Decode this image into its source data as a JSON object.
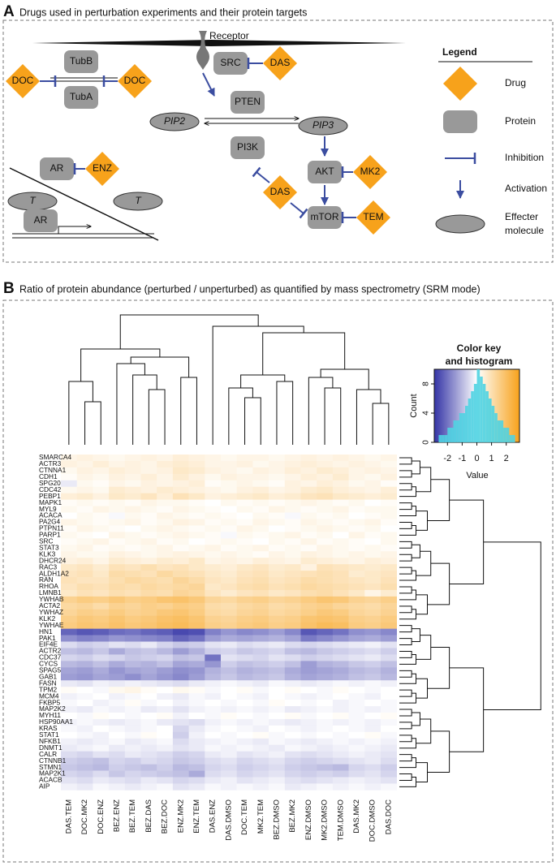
{
  "panel_a": {
    "label": "A",
    "title": "Drugs used in perturbation experiments and their protein targets",
    "receptor": "Receptor",
    "drugs": [
      "DOC",
      "DOC",
      "DAS",
      "ENZ",
      "DAS",
      "MK2",
      "TEM"
    ],
    "proteins": [
      "TubB",
      "TubA",
      "SRC",
      "PTEN",
      "PI3K",
      "AR",
      "AKT",
      "mTOR",
      "AR"
    ],
    "molecules": [
      "PIP2",
      "PIP3",
      "T",
      "T"
    ],
    "legend": {
      "title": "Legend",
      "drug": "Drug",
      "protein": "Protein",
      "inhibition": "Inhibition",
      "activation": "Activation",
      "effecter": [
        "Effecter",
        "molecule"
      ]
    }
  },
  "chart_data": {
    "type": "heatmap",
    "panel_label": "B",
    "title": "Ratio of protein abundance (perturbed / unperturbed) as quantified by mass spectrometry (SRM mode)",
    "rows": [
      "SMARCA4",
      "ACTR3",
      "CTNNA1",
      "CDH1",
      "SPG20",
      "CDC42",
      "PEBP1",
      "MAPK1",
      "MYL9",
      "ACACA",
      "PA2G4",
      "PTPN11",
      "PARP1",
      "SRC",
      "STAT3",
      "KLK3",
      "DHCR24",
      "RAC3",
      "ALDH1A2",
      "RAN",
      "RHOA",
      "LMNB1",
      "YWHAB",
      "ACTA2",
      "YWHAZ",
      "KLK2",
      "YWHAE",
      "HN1",
      "PAK1",
      "EIF4E",
      "ACTR2",
      "CDC37",
      "CYCS",
      "SPAG5",
      "GAB1",
      "FASN",
      "TPM2",
      "MCM4",
      "FKBP5",
      "MAP2K2",
      "MYH11",
      "HSP90AA1",
      "KRAS",
      "STAT1",
      "NFKB1",
      "DNMT1",
      "CALR",
      "CTNNB1",
      "STMN1",
      "MAP2K1",
      "ACACB",
      "AIP"
    ],
    "columns": [
      "DAS.TEM",
      "DOC.MK2",
      "DOC.ENZ",
      "BEZ.ENZ",
      "BEZ.TEM",
      "BEZ.DAS",
      "BEZ.DOC",
      "ENZ.MK2",
      "ENZ.TEM",
      "DAS.ENZ",
      "DAS.DMSO",
      "DOC.TEM",
      "MK2.TEM",
      "BEZ.DMSO",
      "BEZ.MK2",
      "ENZ.DMSO",
      "MK2.DMSO",
      "TEM.DMSO",
      "DAS.MK2",
      "DOC.DMSO",
      "DAS.DOC"
    ],
    "values": [
      [
        0.3,
        0.4,
        0.3,
        0.2,
        0.3,
        0.4,
        0.3,
        0.5,
        0.4,
        0.3,
        0.2,
        0.3,
        0.3,
        0.2,
        0.3,
        0.4,
        0.3,
        0.4,
        0.3,
        0.2,
        0.3
      ],
      [
        0.4,
        0.3,
        0.5,
        0.3,
        0.4,
        0.3,
        0.5,
        0.6,
        0.5,
        0.3,
        0.3,
        0.4,
        0.2,
        0.3,
        0.4,
        0.5,
        0.4,
        0.3,
        0.4,
        0.3,
        0.2
      ],
      [
        0.2,
        0.4,
        0.3,
        0.5,
        0.4,
        0.3,
        0.4,
        0.7,
        0.6,
        0.4,
        0.3,
        0.2,
        0.4,
        0.3,
        0.5,
        0.4,
        0.6,
        0.5,
        0.3,
        0.4,
        0.3
      ],
      [
        0.1,
        0.3,
        0.2,
        0.4,
        0.3,
        0.5,
        0.3,
        0.6,
        0.4,
        0.2,
        0.4,
        0.3,
        0.3,
        0.2,
        0.3,
        0.5,
        0.4,
        0.6,
        0.3,
        0.2,
        0.4
      ],
      [
        -0.3,
        0.2,
        0.1,
        0.3,
        0.2,
        0.4,
        0.3,
        0.4,
        0.5,
        0.1,
        0.2,
        0.3,
        0.2,
        0.1,
        0.4,
        0.3,
        0.5,
        0.4,
        0.2,
        0.3,
        0.1
      ],
      [
        0.2,
        0.3,
        0.2,
        0.6,
        0.5,
        0.4,
        0.6,
        0.5,
        0.4,
        0.3,
        0.2,
        0.4,
        0.5,
        0.3,
        0.4,
        0.6,
        0.7,
        0.5,
        0.4,
        0.3,
        0.5
      ],
      [
        0.5,
        0.6,
        0.4,
        0.7,
        0.6,
        0.8,
        0.5,
        0.9,
        0.7,
        0.4,
        0.5,
        0.6,
        0.7,
        0.5,
        0.6,
        0.8,
        0.9,
        0.7,
        0.6,
        0.5,
        0.6
      ],
      [
        0.1,
        0.2,
        0.1,
        0.2,
        0.1,
        0.3,
        0.2,
        0.2,
        0.1,
        0.0,
        0.2,
        0.1,
        0.2,
        0.1,
        0.2,
        0.3,
        0.2,
        0.1,
        0.2,
        0.0,
        0.1
      ],
      [
        0.2,
        0.1,
        0.3,
        0.2,
        0.3,
        0.2,
        0.1,
        0.3,
        0.2,
        0.1,
        0.0,
        0.2,
        0.1,
        0.3,
        0.2,
        0.1,
        0.2,
        0.3,
        0.1,
        0.2,
        0.2
      ],
      [
        0.0,
        0.2,
        0.1,
        -0.1,
        0.2,
        0.1,
        0.3,
        0.2,
        0.1,
        0.2,
        0.1,
        0.0,
        0.2,
        0.1,
        -0.1,
        0.2,
        0.1,
        0.2,
        0.0,
        0.1,
        0.2
      ],
      [
        0.3,
        0.2,
        0.1,
        0.2,
        0.3,
        0.1,
        0.2,
        0.4,
        0.3,
        0.1,
        0.2,
        0.1,
        0.3,
        0.2,
        0.1,
        0.3,
        0.2,
        0.1,
        0.2,
        0.3,
        0.1
      ],
      [
        0.1,
        0.3,
        0.2,
        0.1,
        0.0,
        0.2,
        0.3,
        0.2,
        0.1,
        0.2,
        0.1,
        0.3,
        0.2,
        0.0,
        0.1,
        0.2,
        0.3,
        0.2,
        0.1,
        0.2,
        0.0
      ],
      [
        0.2,
        0.1,
        0.0,
        0.3,
        0.2,
        0.1,
        0.2,
        0.3,
        0.2,
        0.1,
        -0.1,
        0.2,
        0.1,
        0.2,
        0.3,
        0.1,
        0.2,
        0.0,
        0.3,
        0.1,
        0.2
      ],
      [
        0.1,
        0.2,
        0.3,
        0.1,
        0.2,
        0.3,
        0.1,
        0.2,
        0.0,
        0.1,
        0.2,
        0.1,
        0.0,
        0.2,
        0.1,
        0.3,
        0.1,
        0.2,
        0.1,
        0.0,
        0.2
      ],
      [
        0.2,
        0.3,
        0.1,
        0.2,
        0.1,
        0.2,
        0.3,
        0.1,
        0.2,
        0.3,
        0.1,
        0.2,
        0.3,
        0.1,
        0.2,
        0.1,
        0.3,
        0.2,
        0.1,
        0.2,
        0.1
      ],
      [
        0.3,
        0.2,
        0.2,
        0.4,
        0.3,
        0.2,
        0.3,
        0.4,
        0.3,
        0.2,
        0.3,
        0.2,
        0.1,
        0.3,
        0.2,
        0.4,
        0.3,
        0.2,
        0.3,
        0.2,
        0.3
      ],
      [
        0.4,
        0.5,
        0.3,
        0.6,
        0.5,
        0.4,
        0.6,
        0.5,
        0.7,
        0.3,
        0.4,
        0.3,
        0.5,
        0.4,
        0.3,
        0.6,
        0.5,
        0.4,
        0.3,
        0.5,
        0.4
      ],
      [
        0.7,
        0.8,
        0.6,
        0.9,
        0.8,
        1.0,
        0.8,
        0.9,
        0.7,
        0.6,
        0.5,
        0.7,
        0.8,
        0.6,
        0.7,
        0.4,
        0.9,
        0.8,
        0.7,
        0.6,
        0.7
      ],
      [
        0.8,
        0.9,
        0.7,
        1.1,
        1.0,
        0.9,
        1.2,
        1.0,
        0.9,
        0.7,
        0.6,
        0.8,
        0.9,
        0.7,
        0.8,
        0.9,
        1.0,
        0.9,
        0.6,
        0.7,
        0.8
      ],
      [
        0.9,
        0.8,
        0.8,
        1.0,
        1.2,
        1.1,
        1.0,
        1.3,
        1.1,
        0.8,
        0.7,
        0.9,
        1.0,
        0.8,
        0.9,
        1.1,
        1.0,
        0.9,
        0.8,
        0.7,
        0.9
      ],
      [
        0.8,
        1.0,
        0.9,
        1.1,
        1.0,
        1.2,
        1.1,
        1.2,
        1.3,
        0.7,
        0.8,
        1.0,
        1.1,
        0.9,
        1.0,
        1.2,
        1.1,
        1.0,
        0.9,
        0.8,
        1.0
      ],
      [
        0.7,
        0.9,
        0.8,
        1.0,
        0.9,
        1.1,
        1.0,
        1.3,
        1.2,
        0.8,
        0.6,
        0.8,
        0.9,
        0.7,
        0.8,
        1.0,
        1.1,
        0.9,
        0.7,
        0.3,
        0.6
      ],
      [
        1.4,
        1.6,
        1.5,
        1.7,
        1.5,
        1.6,
        1.8,
        1.9,
        1.7,
        1.3,
        1.2,
        1.4,
        1.5,
        1.3,
        1.4,
        1.6,
        1.8,
        1.7,
        1.4,
        1.3,
        1.5
      ],
      [
        1.2,
        1.3,
        1.1,
        1.4,
        1.3,
        1.5,
        1.4,
        1.6,
        1.5,
        1.1,
        1.0,
        1.2,
        1.3,
        1.1,
        1.2,
        1.4,
        1.5,
        1.3,
        1.2,
        1.1,
        1.3
      ],
      [
        1.3,
        1.5,
        1.4,
        1.6,
        1.4,
        1.5,
        1.7,
        1.8,
        1.6,
        1.2,
        1.1,
        1.3,
        1.4,
        1.2,
        1.3,
        1.5,
        1.7,
        1.6,
        1.3,
        1.2,
        1.4
      ],
      [
        1.5,
        1.7,
        1.6,
        1.8,
        1.6,
        1.7,
        1.9,
        2.0,
        1.8,
        1.4,
        1.3,
        1.5,
        1.6,
        1.4,
        1.5,
        1.8,
        1.9,
        1.8,
        1.5,
        1.4,
        1.6
      ],
      [
        1.6,
        1.8,
        1.7,
        1.9,
        1.7,
        1.8,
        2.0,
        2.1,
        1.9,
        1.5,
        1.4,
        1.6,
        1.7,
        1.5,
        1.6,
        1.9,
        2.1,
        2.0,
        1.6,
        1.5,
        1.7
      ],
      [
        -2.2,
        -2.4,
        -2.3,
        -2.1,
        -2.0,
        -2.2,
        -2.3,
        -2.6,
        -2.5,
        -1.8,
        -1.5,
        -1.7,
        -1.6,
        -1.4,
        -1.7,
        -2.4,
        -2.2,
        -2.0,
        -1.6,
        -1.5,
        -1.7
      ],
      [
        -1.6,
        -1.8,
        -1.7,
        -1.5,
        -1.6,
        -1.7,
        -1.8,
        -2.2,
        -2.0,
        -1.4,
        -1.2,
        -1.3,
        -1.2,
        -1.1,
        -1.3,
        -1.9,
        -1.7,
        -1.5,
        -1.3,
        -1.2,
        -1.4
      ],
      [
        -0.5,
        -0.7,
        -0.6,
        -0.4,
        -0.5,
        -0.3,
        -0.6,
        -0.8,
        -0.7,
        -0.4,
        -0.3,
        -0.5,
        -0.4,
        -0.3,
        -0.5,
        -0.6,
        -0.5,
        -0.4,
        -0.3,
        -0.2,
        -0.4
      ],
      [
        -0.9,
        -1.0,
        -0.8,
        -1.2,
        -0.9,
        -0.8,
        -1.0,
        -1.4,
        -1.1,
        -0.7,
        -0.6,
        -0.8,
        -0.7,
        -0.6,
        -0.9,
        -1.0,
        -0.8,
        -0.7,
        -0.6,
        -0.5,
        -0.7
      ],
      [
        -0.6,
        -0.7,
        -0.5,
        -0.6,
        -0.8,
        -0.7,
        -0.6,
        -0.9,
        -0.8,
        -2.0,
        -0.4,
        -0.5,
        -0.6,
        -0.4,
        -0.5,
        -0.7,
        -0.6,
        -0.5,
        -0.4,
        -0.3,
        -0.5
      ],
      [
        -1.0,
        -1.1,
        -0.9,
        -1.2,
        -1.0,
        -1.1,
        -0.9,
        -1.3,
        -1.2,
        -1.5,
        -0.7,
        -0.9,
        -0.8,
        -0.7,
        -0.9,
        -1.4,
        -1.1,
        -1.0,
        -0.8,
        -0.7,
        -0.9
      ],
      [
        -1.3,
        -1.4,
        -1.2,
        -1.5,
        -1.3,
        -1.2,
        -1.4,
        -1.6,
        -1.5,
        -1.1,
        -0.9,
        -1.1,
        -1.0,
        -0.9,
        -1.2,
        -1.4,
        -1.3,
        -1.2,
        -1.0,
        -0.9,
        -1.1
      ],
      [
        -1.4,
        -1.5,
        -1.3,
        -1.4,
        -1.6,
        -1.3,
        -1.5,
        -1.7,
        -1.4,
        -1.0,
        -0.8,
        -1.0,
        -0.9,
        -0.8,
        -1.1,
        -1.3,
        -1.2,
        -1.1,
        -0.9,
        -0.8,
        -1.0
      ],
      [
        -0.3,
        -0.4,
        -0.2,
        -0.3,
        -0.2,
        -0.3,
        -0.4,
        -0.5,
        -0.3,
        -0.2,
        -0.1,
        -0.2,
        -0.3,
        -0.1,
        -0.2,
        -0.3,
        -0.2,
        -0.1,
        -0.2,
        -0.1,
        -0.2
      ],
      [
        0.1,
        0.0,
        -0.1,
        0.2,
        0.3,
        0.1,
        0.0,
        0.2,
        0.1,
        -0.1,
        0.0,
        0.1,
        -0.1,
        0.0,
        0.1,
        0.0,
        -0.1,
        0.1,
        0.0,
        -0.1,
        0.0
      ],
      [
        -0.2,
        -0.1,
        0.0,
        -0.2,
        -0.1,
        0.0,
        -0.2,
        -0.3,
        -0.1,
        -0.2,
        0.0,
        -0.1,
        -0.2,
        0.0,
        -0.1,
        -0.2,
        -0.1,
        0.0,
        -0.1,
        -0.2,
        0.0
      ],
      [
        -0.1,
        0.0,
        -0.2,
        -0.1,
        0.1,
        -0.1,
        0.0,
        -0.2,
        -0.1,
        0.0,
        -0.1,
        0.0,
        -0.1,
        0.1,
        0.0,
        -0.1,
        0.0,
        -0.2,
        -0.1,
        0.0,
        -0.1
      ],
      [
        -0.2,
        -0.3,
        -0.1,
        -0.2,
        -0.1,
        -0.3,
        -0.2,
        -0.4,
        -0.2,
        -0.1,
        -0.2,
        -0.1,
        -0.2,
        -0.1,
        -0.3,
        -0.2,
        -0.1,
        -0.2,
        -0.1,
        -0.2,
        -0.1
      ],
      [
        0.0,
        -0.1,
        0.1,
        0.0,
        -0.1,
        0.0,
        0.1,
        -0.2,
        0.0,
        -0.1,
        0.1,
        0.0,
        -0.1,
        0.0,
        0.1,
        -0.1,
        0.0,
        0.1,
        -0.1,
        0.0,
        0.1
      ],
      [
        -0.2,
        -0.1,
        -0.2,
        -0.3,
        -0.2,
        -0.1,
        -0.3,
        -0.4,
        -0.5,
        -0.2,
        -0.1,
        -0.2,
        -0.1,
        -0.2,
        -0.3,
        -0.2,
        -0.1,
        -0.2,
        -0.1,
        -0.2,
        -0.1
      ],
      [
        -0.1,
        -0.2,
        0.0,
        -0.1,
        -0.2,
        -0.1,
        0.0,
        -0.6,
        -0.3,
        -0.1,
        0.0,
        -0.1,
        -0.2,
        0.0,
        -0.1,
        -0.2,
        -0.1,
        0.0,
        -0.1,
        -0.2,
        0.0
      ],
      [
        0.0,
        -0.1,
        -0.2,
        0.0,
        -0.1,
        0.1,
        0.0,
        -0.7,
        -0.2,
        0.0,
        -0.1,
        0.0,
        0.1,
        -0.1,
        0.0,
        -0.1,
        0.0,
        -0.1,
        0.0,
        0.1,
        -0.1
      ],
      [
        -0.2,
        -0.3,
        -0.2,
        -0.1,
        -0.3,
        -0.2,
        -0.1,
        -0.5,
        -0.3,
        -0.2,
        -0.1,
        -0.2,
        -0.3,
        -0.1,
        -0.2,
        -0.3,
        -0.2,
        -0.1,
        -0.2,
        -0.1,
        -0.2
      ],
      [
        -0.3,
        -0.2,
        -0.1,
        -0.3,
        -0.2,
        -0.3,
        -0.2,
        -0.4,
        -0.3,
        -0.1,
        -0.2,
        -0.1,
        -0.2,
        -0.3,
        -0.1,
        -0.2,
        -0.3,
        -0.2,
        -0.1,
        -0.2,
        -0.3
      ],
      [
        -0.5,
        -0.6,
        -0.4,
        -0.5,
        -0.3,
        -0.4,
        -0.5,
        -0.7,
        -0.6,
        -0.3,
        -0.2,
        -0.4,
        -0.3,
        -0.2,
        -0.4,
        -0.5,
        -0.4,
        -0.3,
        -0.2,
        -0.3,
        -0.4
      ],
      [
        -0.7,
        -0.8,
        -0.9,
        -0.6,
        -0.7,
        -0.5,
        -0.6,
        -0.8,
        -0.7,
        -0.5,
        -0.4,
        -0.6,
        -0.5,
        -0.4,
        -0.6,
        -0.7,
        -0.6,
        -0.5,
        -0.4,
        -0.3,
        -0.5
      ],
      [
        -0.8,
        -0.9,
        -1.0,
        -0.7,
        -0.8,
        -0.9,
        -0.7,
        -1.0,
        -0.9,
        -0.6,
        -0.5,
        -0.7,
        -0.6,
        -0.5,
        -0.7,
        -0.8,
        -0.9,
        -1.0,
        -0.6,
        -0.5,
        -0.7
      ],
      [
        -0.6,
        -0.7,
        -0.5,
        -0.8,
        -0.6,
        -0.7,
        -0.8,
        -0.9,
        -1.2,
        -0.5,
        -0.4,
        -0.6,
        -0.5,
        -0.4,
        -0.6,
        -0.7,
        -0.6,
        -0.7,
        -0.5,
        -0.4,
        -0.6
      ],
      [
        -0.4,
        -0.5,
        -0.3,
        -0.4,
        -0.5,
        -0.3,
        -0.4,
        -0.6,
        -0.5,
        -0.3,
        -0.2,
        -0.4,
        -0.3,
        -0.2,
        -0.4,
        -0.5,
        -0.4,
        -0.3,
        -0.2,
        -0.3,
        -0.4
      ],
      [
        -0.2,
        -0.3,
        -0.1,
        -0.2,
        -0.3,
        -0.2,
        -0.1,
        -0.4,
        -0.3,
        -0.1,
        -0.2,
        -0.1,
        -0.2,
        -0.1,
        -0.3,
        -0.2,
        -0.1,
        -0.2,
        -0.1,
        -0.2,
        -0.1
      ]
    ],
    "colors": [
      "#3434a6",
      "#ffffff",
      "#f7a21b"
    ],
    "key": {
      "title": [
        "Color key",
        "and histogram"
      ],
      "xlabel": "Value",
      "ylabel": "Count",
      "xlim": [
        -2.9,
        2.9
      ],
      "xticks": [
        -2,
        -1,
        0,
        1,
        2
      ],
      "ylim": [
        0,
        10
      ],
      "yticks": [
        0,
        4,
        8
      ],
      "color": "#4fd3e2",
      "bins": [
        -2.6,
        -2.4,
        -2.2,
        -2.0,
        -1.8,
        -1.6,
        -1.4,
        -1.2,
        -1.0,
        -0.8,
        -0.6,
        -0.4,
        -0.2,
        0.0,
        0.2,
        0.4,
        0.6,
        0.8,
        1.0,
        1.2,
        1.4,
        1.6,
        1.8,
        2.0,
        2.2,
        2.4,
        2.6
      ],
      "counts": [
        1,
        1,
        1,
        2,
        2,
        3,
        3,
        4,
        4,
        5,
        6,
        7,
        8,
        10,
        9,
        8,
        7,
        6,
        5,
        4,
        3,
        3,
        2,
        2,
        1,
        1
      ]
    }
  }
}
